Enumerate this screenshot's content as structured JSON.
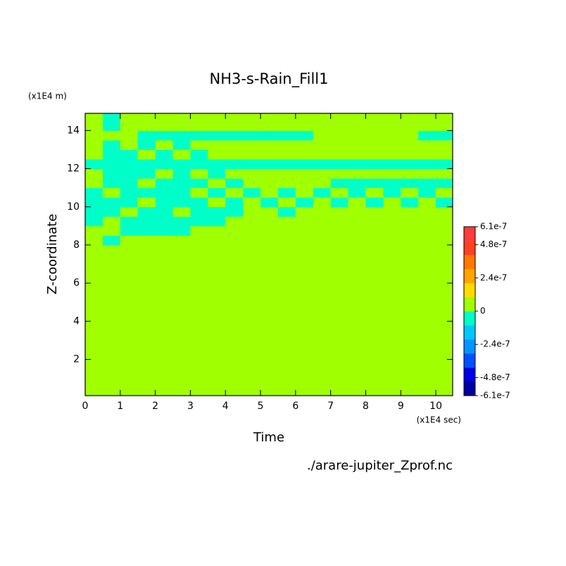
{
  "chart_data": {
    "type": "contour",
    "title": "NH3-s-Rain_Fill1",
    "x_label": "Time",
    "y_label": "Z-coordinate",
    "x_unit": "(x1E4 sec)",
    "y_unit": "(x1E4 m)",
    "source": "./arare-jupiter_Zprof.nc",
    "xlim": [
      0,
      10.48
    ],
    "ylim": [
      0.1,
      14.9
    ],
    "xticks": [
      0,
      1,
      2,
      3,
      4,
      5,
      6,
      7,
      8,
      9,
      10
    ],
    "yticks": [
      2,
      4,
      6,
      8,
      10,
      12,
      14
    ],
    "x_edges": [
      0,
      0.5,
      1,
      1.5,
      2,
      2.5,
      3,
      3.5,
      4,
      4.5,
      5,
      5.5,
      6,
      6.5,
      7,
      7.5,
      8,
      8.5,
      9,
      9.5,
      10,
      10.48
    ],
    "y_edges": [
      0.1,
      8,
      8.5,
      9,
      9.5,
      10,
      10.5,
      11,
      11.5,
      12,
      12.5,
      13,
      13.5,
      14,
      14.9
    ],
    "z": [
      [
        0,
        0,
        0,
        0,
        0,
        0,
        0,
        0,
        0,
        0,
        0,
        0,
        0,
        0,
        0,
        0,
        0,
        0,
        0,
        0,
        0
      ],
      [
        0,
        -5e-08,
        0,
        0,
        0,
        0,
        0,
        0,
        0,
        0,
        0,
        0,
        0,
        0,
        0,
        0,
        0,
        0,
        0,
        0,
        0
      ],
      [
        0,
        0,
        -5e-08,
        -5e-08,
        -5e-08,
        -5e-08,
        0,
        0,
        0,
        0,
        0,
        0,
        0,
        0,
        0,
        0,
        0,
        0,
        0,
        0,
        0
      ],
      [
        -5e-08,
        0,
        -5e-08,
        -5e-08,
        -5e-08,
        -5e-08,
        -5e-08,
        -5e-08,
        0,
        0,
        0,
        0,
        0,
        0,
        0,
        0,
        0,
        0,
        0,
        0,
        0
      ],
      [
        -5e-08,
        -5e-08,
        0,
        -5e-08,
        -5e-08,
        0,
        -5e-08,
        -5e-08,
        -5e-08,
        0,
        0,
        -5e-08,
        0,
        0,
        0,
        0,
        0,
        0,
        0,
        0,
        0
      ],
      [
        -5e-08,
        -5e-08,
        -5e-08,
        0,
        -5e-08,
        -5e-08,
        -5e-08,
        0,
        -5e-08,
        0,
        -5e-08,
        0,
        -5e-08,
        0,
        -5e-08,
        0,
        -5e-08,
        0,
        -5e-08,
        0,
        -5e-08
      ],
      [
        -5e-08,
        0,
        -5e-08,
        -5e-08,
        -5e-08,
        -5e-08,
        0,
        -5e-08,
        0,
        -5e-08,
        0,
        -5e-08,
        0,
        -5e-08,
        0,
        -5e-08,
        0,
        -5e-08,
        0,
        -5e-08,
        0
      ],
      [
        0,
        -5e-08,
        -5e-08,
        0,
        -5e-08,
        -5e-08,
        -5e-08,
        0,
        -5e-08,
        0,
        0,
        0,
        0,
        0,
        -5e-08,
        -5e-08,
        -5e-08,
        -5e-08,
        -5e-08,
        -5e-08,
        -5e-08
      ],
      [
        0,
        -5e-08,
        -5e-08,
        -5e-08,
        0,
        -5e-08,
        0,
        -5e-08,
        0,
        0,
        0,
        0,
        0,
        0,
        0,
        0,
        0,
        0,
        0,
        0,
        0
      ],
      [
        -5e-08,
        -5e-08,
        -5e-08,
        -5e-08,
        -5e-08,
        -5e-08,
        -5e-08,
        -5e-08,
        -5e-08,
        -5e-08,
        -5e-08,
        -5e-08,
        -5e-08,
        -5e-08,
        -5e-08,
        -5e-08,
        -5e-08,
        -5e-08,
        -5e-08,
        -5e-08,
        -5e-08
      ],
      [
        0,
        -5e-08,
        -5e-08,
        0,
        -5e-08,
        0,
        -5e-08,
        0,
        0,
        0,
        0,
        0,
        0,
        0,
        0,
        0,
        0,
        0,
        0,
        0,
        0
      ],
      [
        0,
        -5e-08,
        0,
        -5e-08,
        0,
        -5e-08,
        0,
        0,
        0,
        0,
        0,
        0,
        0,
        0,
        0,
        0,
        0,
        0,
        0,
        0,
        0
      ],
      [
        0,
        0,
        0,
        -5e-08,
        -5e-08,
        -5e-08,
        -5e-08,
        -5e-08,
        -5e-08,
        -5e-08,
        -5e-08,
        -5e-08,
        -5e-08,
        0,
        0,
        0,
        0,
        0,
        0,
        -5e-08,
        -5e-08
      ],
      [
        0,
        -5e-08,
        0,
        0,
        0,
        0,
        0,
        0,
        0,
        0,
        0,
        0,
        0,
        0,
        0,
        0,
        0,
        0,
        0,
        0,
        0
      ]
    ],
    "colorbar": {
      "levels": [
        -6.1e-07,
        -5.08e-07,
        -4.07e-07,
        -3.05e-07,
        -2.03e-07,
        -1.02e-07,
        0,
        1.02e-07,
        2.03e-07,
        3.05e-07,
        4.07e-07,
        5.08e-07,
        6.1e-07
      ],
      "colors": [
        "#0000a0",
        "#0000e6",
        "#0050ff",
        "#0096ff",
        "#00c8ff",
        "#00ffc8",
        "#a0ff00",
        "#ffdc00",
        "#ffa500",
        "#ff7800",
        "#ff4020",
        "#ff3c3c"
      ],
      "ticks": [
        6.1e-07,
        4.8e-07,
        2.4e-07,
        0,
        -2.4e-07,
        -4.8e-07,
        -6.1e-07
      ]
    }
  }
}
